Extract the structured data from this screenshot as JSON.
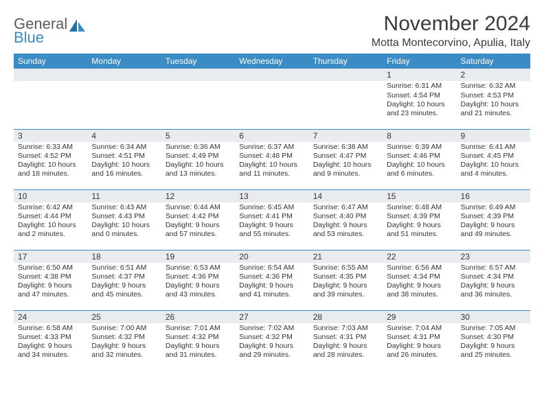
{
  "brand": {
    "part1": "General",
    "part2": "Blue"
  },
  "title": "November 2024",
  "location": "Motta Montecorvino, Apulia, Italy",
  "colors": {
    "header_bg": "#3b8bc4",
    "header_text": "#ffffff",
    "daynum_bg": "#e9ecee",
    "rule": "#3b8bc4",
    "text": "#333333",
    "background": "#ffffff"
  },
  "weekdays": [
    "Sunday",
    "Monday",
    "Tuesday",
    "Wednesday",
    "Thursday",
    "Friday",
    "Saturday"
  ],
  "weeks": [
    [
      null,
      null,
      null,
      null,
      null,
      {
        "n": "1",
        "sr": "Sunrise: 6:31 AM",
        "ss": "Sunset: 4:54 PM",
        "dl": "Daylight: 10 hours and 23 minutes."
      },
      {
        "n": "2",
        "sr": "Sunrise: 6:32 AM",
        "ss": "Sunset: 4:53 PM",
        "dl": "Daylight: 10 hours and 21 minutes."
      }
    ],
    [
      {
        "n": "3",
        "sr": "Sunrise: 6:33 AM",
        "ss": "Sunset: 4:52 PM",
        "dl": "Daylight: 10 hours and 18 minutes."
      },
      {
        "n": "4",
        "sr": "Sunrise: 6:34 AM",
        "ss": "Sunset: 4:51 PM",
        "dl": "Daylight: 10 hours and 16 minutes."
      },
      {
        "n": "5",
        "sr": "Sunrise: 6:36 AM",
        "ss": "Sunset: 4:49 PM",
        "dl": "Daylight: 10 hours and 13 minutes."
      },
      {
        "n": "6",
        "sr": "Sunrise: 6:37 AM",
        "ss": "Sunset: 4:48 PM",
        "dl": "Daylight: 10 hours and 11 minutes."
      },
      {
        "n": "7",
        "sr": "Sunrise: 6:38 AM",
        "ss": "Sunset: 4:47 PM",
        "dl": "Daylight: 10 hours and 9 minutes."
      },
      {
        "n": "8",
        "sr": "Sunrise: 6:39 AM",
        "ss": "Sunset: 4:46 PM",
        "dl": "Daylight: 10 hours and 6 minutes."
      },
      {
        "n": "9",
        "sr": "Sunrise: 6:41 AM",
        "ss": "Sunset: 4:45 PM",
        "dl": "Daylight: 10 hours and 4 minutes."
      }
    ],
    [
      {
        "n": "10",
        "sr": "Sunrise: 6:42 AM",
        "ss": "Sunset: 4:44 PM",
        "dl": "Daylight: 10 hours and 2 minutes."
      },
      {
        "n": "11",
        "sr": "Sunrise: 6:43 AM",
        "ss": "Sunset: 4:43 PM",
        "dl": "Daylight: 10 hours and 0 minutes."
      },
      {
        "n": "12",
        "sr": "Sunrise: 6:44 AM",
        "ss": "Sunset: 4:42 PM",
        "dl": "Daylight: 9 hours and 57 minutes."
      },
      {
        "n": "13",
        "sr": "Sunrise: 6:45 AM",
        "ss": "Sunset: 4:41 PM",
        "dl": "Daylight: 9 hours and 55 minutes."
      },
      {
        "n": "14",
        "sr": "Sunrise: 6:47 AM",
        "ss": "Sunset: 4:40 PM",
        "dl": "Daylight: 9 hours and 53 minutes."
      },
      {
        "n": "15",
        "sr": "Sunrise: 6:48 AM",
        "ss": "Sunset: 4:39 PM",
        "dl": "Daylight: 9 hours and 51 minutes."
      },
      {
        "n": "16",
        "sr": "Sunrise: 6:49 AM",
        "ss": "Sunset: 4:39 PM",
        "dl": "Daylight: 9 hours and 49 minutes."
      }
    ],
    [
      {
        "n": "17",
        "sr": "Sunrise: 6:50 AM",
        "ss": "Sunset: 4:38 PM",
        "dl": "Daylight: 9 hours and 47 minutes."
      },
      {
        "n": "18",
        "sr": "Sunrise: 6:51 AM",
        "ss": "Sunset: 4:37 PM",
        "dl": "Daylight: 9 hours and 45 minutes."
      },
      {
        "n": "19",
        "sr": "Sunrise: 6:53 AM",
        "ss": "Sunset: 4:36 PM",
        "dl": "Daylight: 9 hours and 43 minutes."
      },
      {
        "n": "20",
        "sr": "Sunrise: 6:54 AM",
        "ss": "Sunset: 4:36 PM",
        "dl": "Daylight: 9 hours and 41 minutes."
      },
      {
        "n": "21",
        "sr": "Sunrise: 6:55 AM",
        "ss": "Sunset: 4:35 PM",
        "dl": "Daylight: 9 hours and 39 minutes."
      },
      {
        "n": "22",
        "sr": "Sunrise: 6:56 AM",
        "ss": "Sunset: 4:34 PM",
        "dl": "Daylight: 9 hours and 38 minutes."
      },
      {
        "n": "23",
        "sr": "Sunrise: 6:57 AM",
        "ss": "Sunset: 4:34 PM",
        "dl": "Daylight: 9 hours and 36 minutes."
      }
    ],
    [
      {
        "n": "24",
        "sr": "Sunrise: 6:58 AM",
        "ss": "Sunset: 4:33 PM",
        "dl": "Daylight: 9 hours and 34 minutes."
      },
      {
        "n": "25",
        "sr": "Sunrise: 7:00 AM",
        "ss": "Sunset: 4:32 PM",
        "dl": "Daylight: 9 hours and 32 minutes."
      },
      {
        "n": "26",
        "sr": "Sunrise: 7:01 AM",
        "ss": "Sunset: 4:32 PM",
        "dl": "Daylight: 9 hours and 31 minutes."
      },
      {
        "n": "27",
        "sr": "Sunrise: 7:02 AM",
        "ss": "Sunset: 4:32 PM",
        "dl": "Daylight: 9 hours and 29 minutes."
      },
      {
        "n": "28",
        "sr": "Sunrise: 7:03 AM",
        "ss": "Sunset: 4:31 PM",
        "dl": "Daylight: 9 hours and 28 minutes."
      },
      {
        "n": "29",
        "sr": "Sunrise: 7:04 AM",
        "ss": "Sunset: 4:31 PM",
        "dl": "Daylight: 9 hours and 26 minutes."
      },
      {
        "n": "30",
        "sr": "Sunrise: 7:05 AM",
        "ss": "Sunset: 4:30 PM",
        "dl": "Daylight: 9 hours and 25 minutes."
      }
    ]
  ]
}
